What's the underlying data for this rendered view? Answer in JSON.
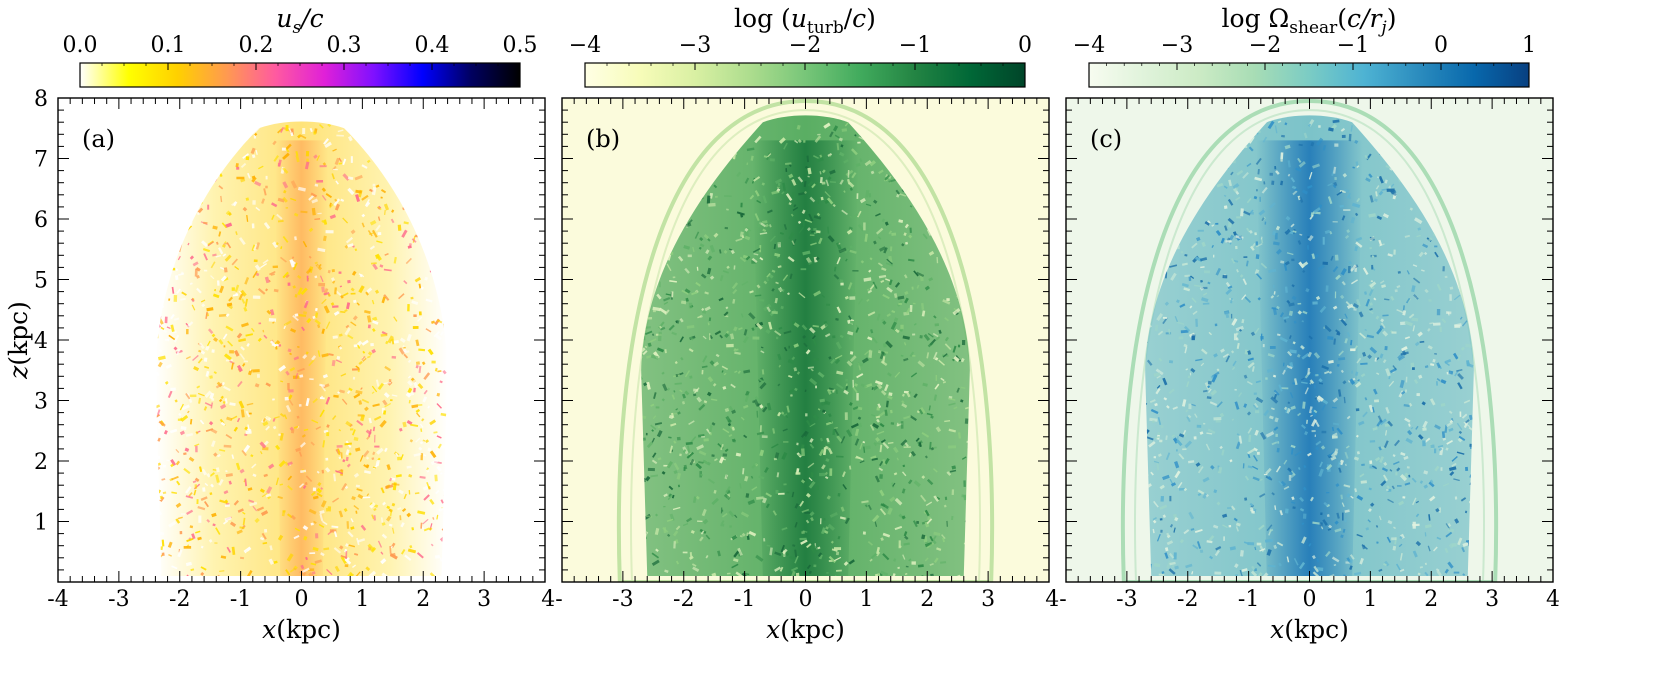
{
  "chart_data": [
    {
      "type": "heatmap",
      "panel": "(a)",
      "quantity": "u_s/c",
      "colorbar": {
        "label": "u_s/c",
        "range": [
          0.0,
          0.5
        ],
        "ticks": [
          0.0,
          0.1,
          0.2,
          0.3,
          0.4,
          0.5
        ],
        "tick_labels": [
          "0.0",
          "0.1",
          "0.2",
          "0.3",
          "0.4",
          "0.5"
        ],
        "colormap": [
          "#ffffff",
          "#ffff00",
          "#ffd000",
          "#ff9a50",
          "#ff5aa0",
          "#e020d8",
          "#8010ff",
          "#0000ff",
          "#000060",
          "#000000"
        ]
      },
      "xlabel": "x(kpc)",
      "ylabel": "z(kpc)",
      "xlim": [
        -4,
        4
      ],
      "ylim": [
        0,
        8
      ],
      "xticks": [
        -4,
        -3,
        -2,
        -1,
        0,
        1,
        2,
        3,
        4
      ],
      "yticks": [
        1,
        2,
        3,
        4,
        5,
        6,
        7,
        8
      ],
      "background_color": "#ffffff",
      "body_color": "#ffe37a",
      "core_color": "#ff9a50",
      "description_shape": {
        "cocoon_half_width_kpc": 2.3,
        "cocoon_top_kpc": 7.6,
        "bow_shock": false
      }
    },
    {
      "type": "heatmap",
      "panel": "(b)",
      "quantity": "log (u_turb/c)",
      "colorbar": {
        "label": "log (u_turb/c)",
        "range": [
          -4,
          0
        ],
        "ticks": [
          -4,
          -3,
          -2,
          -1,
          0
        ],
        "tick_labels": [
          "−4",
          "−3",
          "−2",
          "−1",
          "0"
        ],
        "colormap": [
          "#ffffe5",
          "#f7fcb9",
          "#d9f0a3",
          "#addd8e",
          "#78c679",
          "#41ab5d",
          "#238443",
          "#006837",
          "#004529"
        ]
      },
      "xlabel": "x(kpc)",
      "xlim": [
        -4,
        4
      ],
      "ylim": [
        0,
        8
      ],
      "xticks": [
        -4,
        -3,
        -2,
        -1,
        0,
        1,
        2,
        3,
        4
      ],
      "yticks": [
        1,
        2,
        3,
        4,
        5,
        6,
        7,
        8
      ],
      "background_color": "#fbfbdc",
      "body_color": "#5aae63",
      "core_color": "#1d7a3e",
      "shock_color": "#bfe2a2",
      "description_shape": {
        "cocoon_half_width_kpc": 2.6,
        "cocoon_top_kpc": 7.7,
        "bow_shock": true,
        "shock_half_width_kpc": 3.05,
        "shock_top_kpc": 7.95
      }
    },
    {
      "type": "heatmap",
      "panel": "(c)",
      "quantity": "log Ω_shear(c/r_j)",
      "colorbar": {
        "label": "log Ω_shear(c/r_j)",
        "range": [
          -4,
          1
        ],
        "ticks": [
          -4,
          -3,
          -2,
          -1,
          0,
          1
        ],
        "tick_labels": [
          "−4",
          "−3",
          "−2",
          "−1",
          "0",
          "1"
        ],
        "colormap": [
          "#f7fcf0",
          "#e0f3db",
          "#ccebc5",
          "#a8ddb5",
          "#7bccc4",
          "#4eb3d3",
          "#2b8cbe",
          "#0868ac",
          "#084081"
        ]
      },
      "xlabel": "x(kpc)",
      "xlim": [
        -4,
        4
      ],
      "ylim": [
        0,
        8
      ],
      "xticks": [
        -4,
        -3,
        -2,
        -1,
        0,
        1,
        2,
        3,
        4
      ],
      "yticks": [
        1,
        2,
        3,
        4,
        5,
        6,
        7,
        8
      ],
      "background_color": "#eef7ea",
      "body_color": "#7cc3c9",
      "core_color": "#1f78b8",
      "shock_color": "#a8dcb4",
      "description_shape": {
        "cocoon_half_width_kpc": 2.6,
        "cocoon_top_kpc": 7.7,
        "bow_shock": true,
        "shock_half_width_kpc": 3.05,
        "shock_top_kpc": 7.95
      }
    }
  ],
  "x_tick_labels": [
    "-4",
    "-3",
    "-2",
    "-1",
    "0",
    "1",
    "2",
    "3",
    "4"
  ],
  "x_tick_labels_shared": [
    "-3",
    "-2",
    "-1",
    "0",
    "1",
    "2",
    "3",
    "4-"
  ],
  "y_tick_labels": [
    "1",
    "2",
    "3",
    "4",
    "5",
    "6",
    "7",
    "8"
  ]
}
